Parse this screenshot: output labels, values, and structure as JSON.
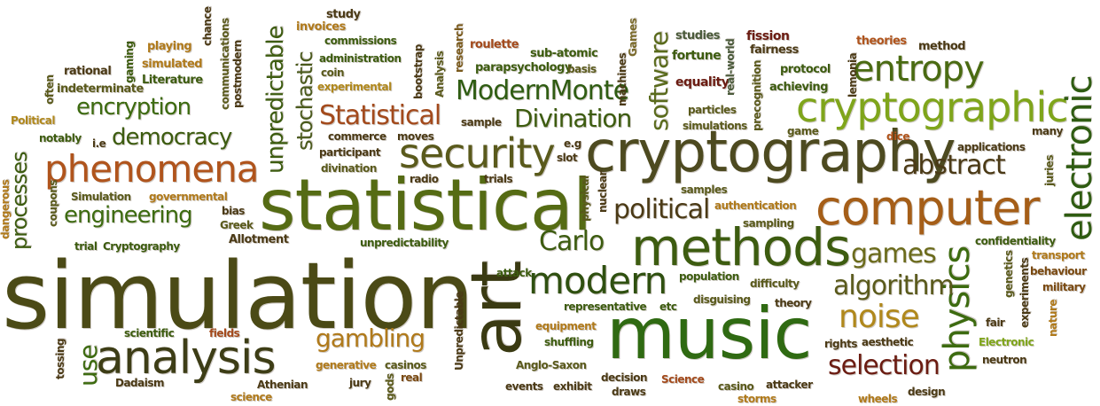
{
  "colors": {
    "green_dark": "#2f4f12",
    "green": "#3d6b10",
    "green_light": "#7fa51b",
    "olive": "#5a5a1c",
    "brown": "#7a4a12",
    "rust": "#a34a1c",
    "maroon": "#6b1c12",
    "orange": "#c07a1b",
    "gray_green": "#4a5a3a"
  },
  "words": {
    "simulation": "simulation",
    "statistical": "statistical",
    "cryptography": "cryptography",
    "music": "music",
    "art": "art",
    "methods": "methods",
    "computer": "computer",
    "cryptographic": "cryptographic",
    "analysis": "analysis",
    "phenomena": "phenomena",
    "security": "security",
    "entropy": "entropy",
    "electronic": "electronic",
    "physics": "physics",
    "modern": "modern",
    "noise": "noise",
    "selection": "selection",
    "unpredictable": "unpredictable",
    "stochastic": "stochastic",
    "processes": "processes",
    "engineering": "engineering",
    "democracy": "democracy",
    "encryption": "encryption",
    "Statistical": "Statistical",
    "Divination": "Divination",
    "ModernMonte": "ModernMonte",
    "software": "software",
    "political": "political",
    "algorithm": "algorithm",
    "abstract": "abstract",
    "gambling": "gambling",
    "games": "games",
    "Carlo": "Carlo",
    "use": "use",
    "commissions": "commissions",
    "administration": "administration",
    "coin": "coin",
    "experimental": "experimental",
    "bootstrap": "bootstrap",
    "research": "research",
    "Analysis": "Analysis",
    "roulette": "roulette",
    "sub_atomic": "sub-atomic",
    "machines": "machines",
    "Games": "Games",
    "parapsychology": "parapsychology",
    "basis": "basis",
    "studies": "studies",
    "fission": "fission",
    "fortune": "fortune",
    "fairness": "fairness",
    "theories": "theories",
    "method": "method",
    "protocol": "protocol",
    "equality": "equality",
    "achieving": "achieving",
    "real_world": "real-world",
    "precognition": "precognition",
    "lemonia": "lemonia",
    "study": "study",
    "invoices": "invoices",
    "chance": "chance",
    "playing": "playing",
    "simulated": "simulated",
    "gaming": "gaming",
    "rational": "rational",
    "indeterminate": "indeterminate",
    "Literature": "Literature",
    "communications": "communications",
    "postmodern": "postmodern",
    "often": "often",
    "Political": "Political",
    "notably": "notably",
    "i_e": "i.e",
    "Simulation": "Simulation",
    "governmental": "governmental",
    "bias": "bias",
    "Greek": "Greek",
    "Allotment": "Allotment",
    "trial": "trial",
    "Cryptography": "Cryptography",
    "dangerous": "dangerous",
    "coupons": "coupons",
    "commerce": "commerce",
    "moves": "moves",
    "participant": "participant",
    "slot": "slot",
    "e_g": "e.g",
    "divination": "divination",
    "radio": "radio",
    "trials": "trials",
    "physical": "physical",
    "nuclear": "nuclear",
    "unpredictability": "unpredictability",
    "sample": "sample",
    "particles": "particles",
    "simulations": "simulations",
    "game": "game",
    "dice": "dice",
    "applications": "applications",
    "many": "many",
    "samples": "samples",
    "authentication": "authentication",
    "sampling": "sampling",
    "confidentiality": "confidentiality",
    "transport": "transport",
    "behaviour": "behaviour",
    "military": "military",
    "genetics": "genetics",
    "experiments": "experiments",
    "nature": "nature",
    "juries": "juries",
    "attack": "attack",
    "population": "population",
    "difficulty": "difficulty",
    "disguising": "disguising",
    "theory": "theory",
    "representative": "representative",
    "etc": "etc",
    "equipment": "equipment",
    "shuffling": "shuffling",
    "rights": "rights",
    "aesthetic": "aesthetic",
    "fair": "fair",
    "Electronic": "Electronic",
    "neutron": "neutron",
    "Unpredictable": "Unpredictable",
    "scientific": "scientific",
    "fields": "fields",
    "tossing": "tossing",
    "generative": "generative",
    "casinos": "casinos",
    "Dadaism": "Dadaism",
    "Athenian": "Athenian",
    "jury": "jury",
    "real": "real",
    "gods": "gods",
    "science": "science",
    "Anglo_Saxon": "Anglo-Saxon",
    "events": "events",
    "exhibit": "exhibit",
    "decision": "decision",
    "draws": "draws",
    "Science": "Science",
    "casino": "casino",
    "attacker": "attacker",
    "storms": "storms",
    "wheels": "wheels",
    "design": "design"
  }
}
